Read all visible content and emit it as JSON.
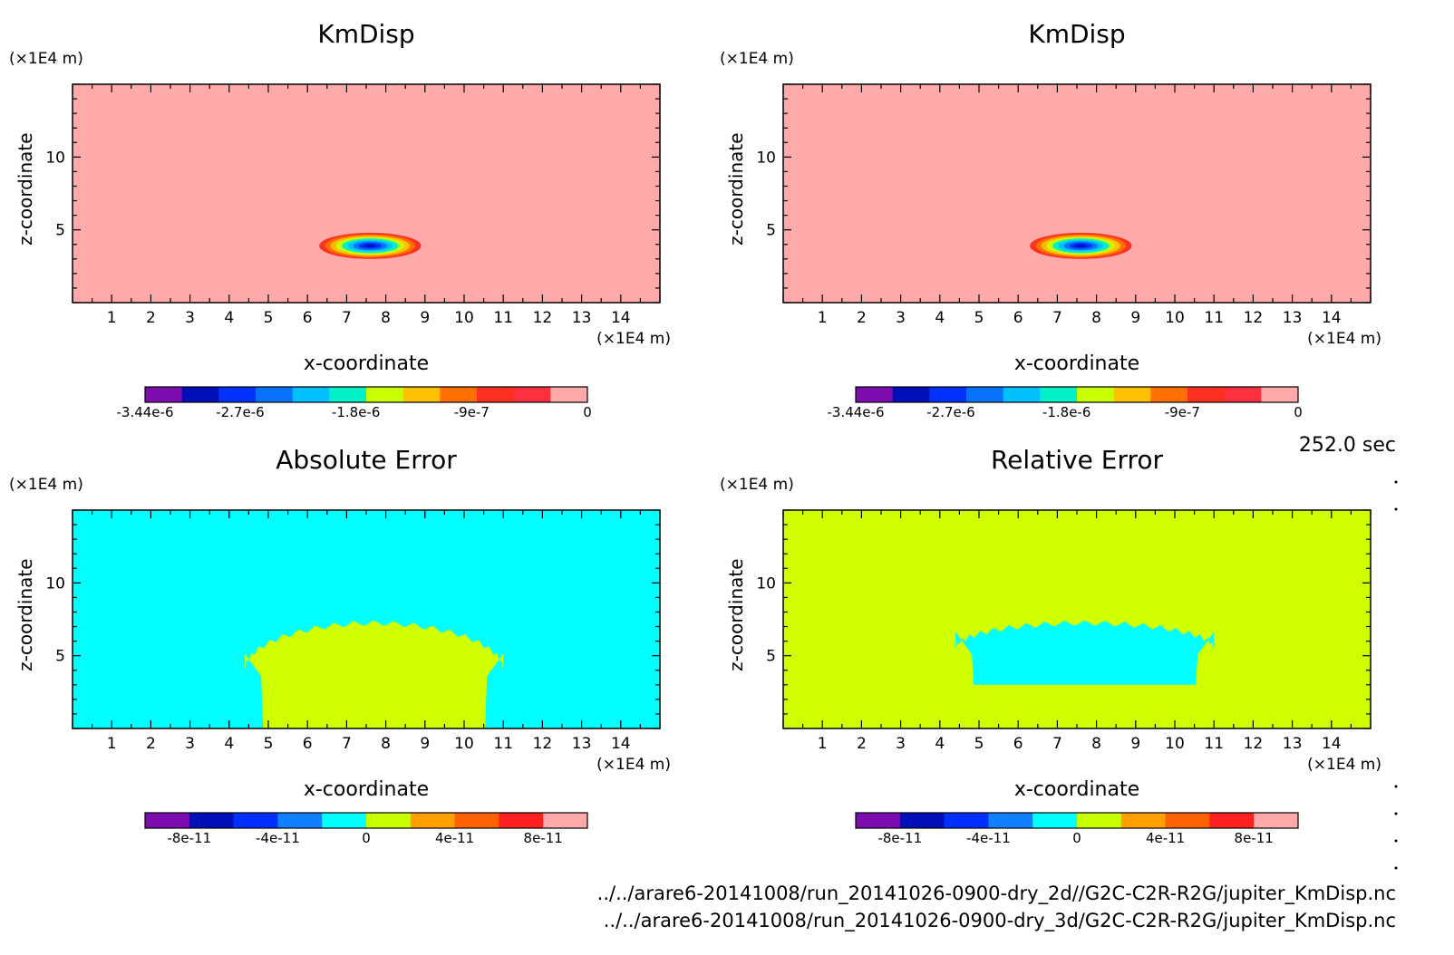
{
  "time_label": "252.0 sec",
  "file_paths": [
    "../../arare6-20141008/run_20141026-0900-dry_2d//G2C-C2R-R2G/jupiter_KmDisp.nc",
    "../../arare6-20141008/run_20141026-0900-dry_3d/G2C-C2R-R2G/jupiter_KmDisp.nc"
  ],
  "colors": {
    "kmdisp_scale": [
      "#7c0bb0",
      "#0010b8",
      "#0031ff",
      "#0872ff",
      "#00c0ff",
      "#00f0c8",
      "#c8ff00",
      "#ffc000",
      "#ff7000",
      "#ff3020",
      "#ff3040",
      "#ffaaaa"
    ],
    "error_scale": [
      "#7c0bb0",
      "#0010b8",
      "#0030ff",
      "#1080ff",
      "#00ffff",
      "#c8ff00",
      "#ffa000",
      "#ff6000",
      "#ff2020",
      "#ffaaaa"
    ],
    "kmdisp_background": "#ffaaaa",
    "absolute_error_background": "#00ffff",
    "absolute_error_region": "#d0ff00",
    "relative_error_background": "#d0ff00",
    "relative_error_region": "#00ffff"
  },
  "chart_data": [
    {
      "type": "heatmap",
      "title": "KmDisp",
      "xlabel": "x-coordinate",
      "ylabel": "z-coordinate",
      "x_unit": "(×1E4 m)",
      "y_unit": "(×1E4 m)",
      "xlim": [
        0,
        15
      ],
      "ylim": [
        0,
        15
      ],
      "x_ticks": [
        1,
        2,
        3,
        4,
        5,
        6,
        7,
        8,
        9,
        10,
        11,
        12,
        13,
        14
      ],
      "y_ticks": [
        5,
        10
      ],
      "feature": {
        "kind": "negative_blob",
        "center_x": 7.6,
        "center_z": 3.9,
        "radius_x": 1.3,
        "radius_z": 0.9
      },
      "colorbar": {
        "min": -3.44e-06,
        "max": 0,
        "tick_labels": [
          "-3.44e-6",
          "-2.7e-6",
          "-1.8e-6",
          "-9e-7",
          "0"
        ],
        "tick_values": [
          -3.44e-06,
          -2.7e-06,
          -1.8e-06,
          -9e-07,
          0
        ]
      }
    },
    {
      "type": "heatmap",
      "title": "KmDisp",
      "xlabel": "x-coordinate",
      "ylabel": "z-coordinate",
      "x_unit": "(×1E4 m)",
      "y_unit": "(×1E4 m)",
      "xlim": [
        0,
        15
      ],
      "ylim": [
        0,
        15
      ],
      "x_ticks": [
        1,
        2,
        3,
        4,
        5,
        6,
        7,
        8,
        9,
        10,
        11,
        12,
        13,
        14
      ],
      "y_ticks": [
        5,
        10
      ],
      "feature": {
        "kind": "negative_blob",
        "center_x": 7.6,
        "center_z": 3.9,
        "radius_x": 1.3,
        "radius_z": 0.9
      },
      "colorbar": {
        "min": -3.44e-06,
        "max": 0,
        "tick_labels": [
          "-3.44e-6",
          "-2.7e-6",
          "-1.8e-6",
          "-9e-7",
          "0"
        ],
        "tick_values": [
          -3.44e-06,
          -2.7e-06,
          -1.8e-06,
          -9e-07,
          0
        ]
      }
    },
    {
      "type": "heatmap",
      "title": "Absolute Error",
      "xlabel": "x-coordinate",
      "ylabel": "z-coordinate",
      "x_unit": "(×1E4 m)",
      "y_unit": "(×1E4 m)",
      "xlim": [
        0,
        15
      ],
      "ylim": [
        0,
        15
      ],
      "x_ticks": [
        1,
        2,
        3,
        4,
        5,
        6,
        7,
        8,
        9,
        10,
        11,
        12,
        13,
        14
      ],
      "y_ticks": [
        5,
        10
      ],
      "feature": {
        "kind": "error_region",
        "x_range": [
          4.4,
          11.0
        ],
        "z_range": [
          0,
          6.8
        ],
        "value_sign": "positive"
      },
      "colorbar": {
        "min": -1e-10,
        "max": 1e-10,
        "tick_labels": [
          "-8e-11",
          "-4e-11",
          "0",
          "4e-11",
          "8e-11"
        ],
        "tick_values": [
          -8e-11,
          -4e-11,
          0,
          4e-11,
          8e-11
        ]
      }
    },
    {
      "type": "heatmap",
      "title": "Relative Error",
      "xlabel": "x-coordinate",
      "ylabel": "z-coordinate",
      "x_unit": "(×1E4 m)",
      "y_unit": "(×1E4 m)",
      "xlim": [
        0,
        15
      ],
      "ylim": [
        0,
        15
      ],
      "x_ticks": [
        1,
        2,
        3,
        4,
        5,
        6,
        7,
        8,
        9,
        10,
        11,
        12,
        13,
        14
      ],
      "y_ticks": [
        5,
        10
      ],
      "feature": {
        "kind": "error_region",
        "x_range": [
          4.4,
          11.0
        ],
        "z_range": [
          3.0,
          6.8
        ],
        "value_sign": "zero"
      },
      "colorbar": {
        "min": -1e-10,
        "max": 1e-10,
        "tick_labels": [
          "-8e-11",
          "-4e-11",
          "0",
          "4e-11",
          "8e-11"
        ],
        "tick_values": [
          -8e-11,
          -4e-11,
          0,
          4e-11,
          8e-11
        ]
      }
    }
  ]
}
